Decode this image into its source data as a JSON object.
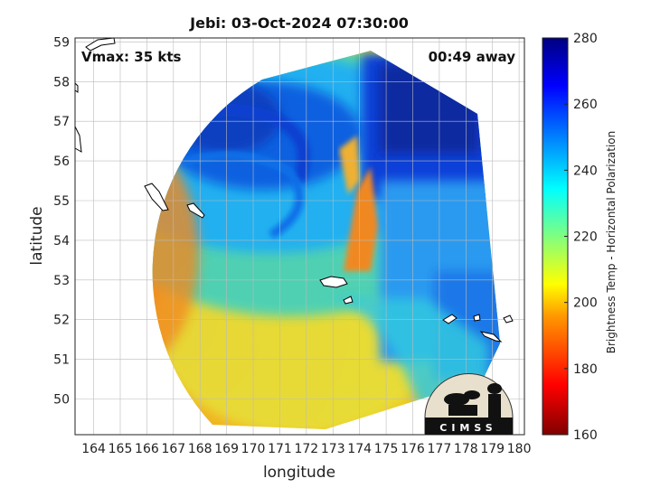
{
  "title": "Jebi: 03-Oct-2024 07:30:00",
  "vmax_label": "Vmax: 35 kts",
  "time_away": "00:49 away",
  "xlabel": "longitude",
  "ylabel": "latitude",
  "colorbar_label": "Brightness Temp - Horizontal Polarization",
  "logo_text": "CIMSS",
  "x_ticks": [
    "164",
    "165",
    "166",
    "167",
    "168",
    "169",
    "170",
    "171",
    "172",
    "173",
    "174",
    "175",
    "176",
    "177",
    "178",
    "179",
    "180"
  ],
  "y_ticks": [
    "50",
    "51",
    "52",
    "53",
    "54",
    "55",
    "56",
    "57",
    "58",
    "59"
  ],
  "colorbar_ticks": [
    "160",
    "180",
    "200",
    "220",
    "240",
    "260",
    "280"
  ],
  "map": {
    "lon_range": [
      163.3,
      180.2
    ],
    "lat_range": [
      49.1,
      59.1
    ],
    "colorbar_range": [
      160,
      280
    ],
    "colormap": "jet",
    "grid": true,
    "swath_center": [
      170.6,
      54.1
    ]
  }
}
